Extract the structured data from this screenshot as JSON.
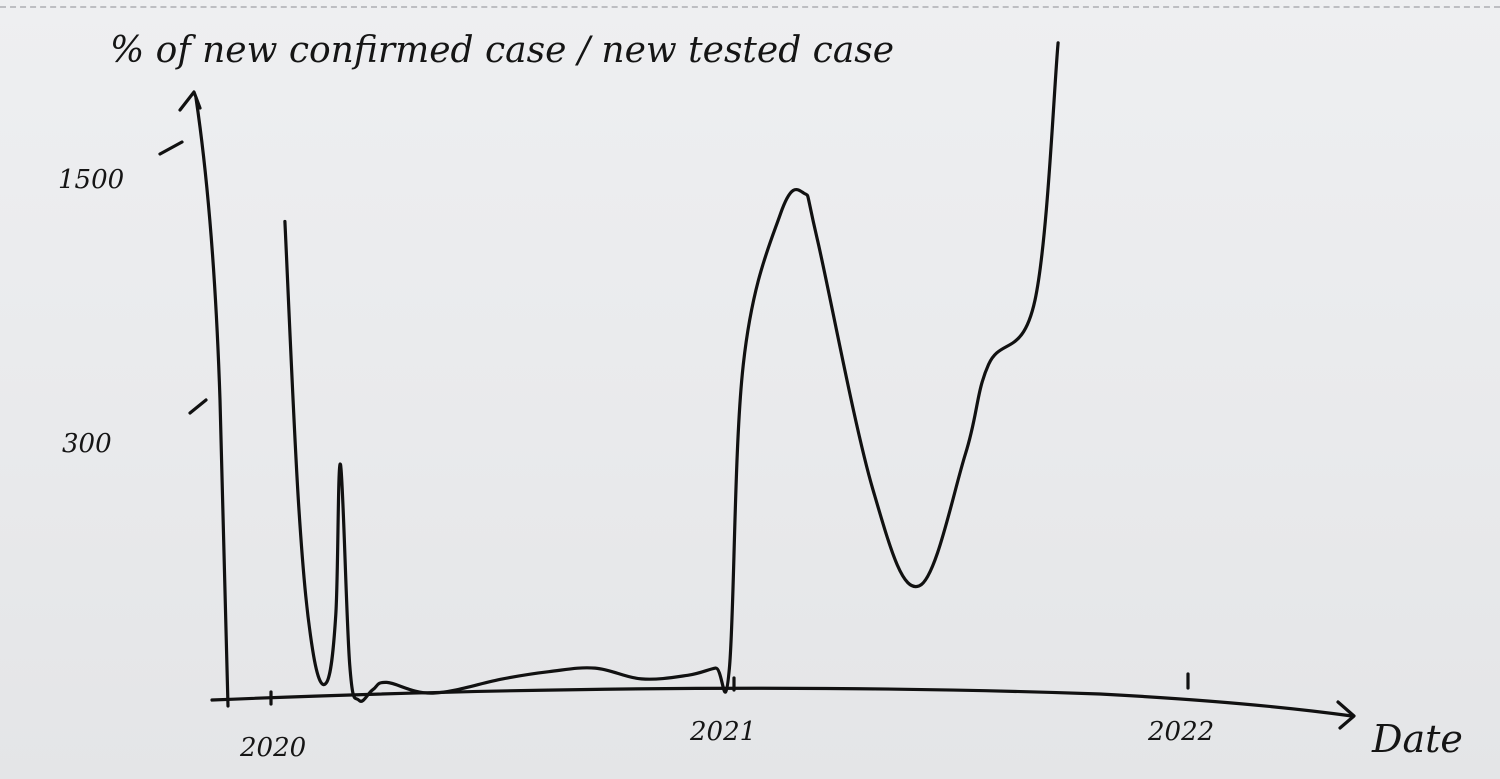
{
  "chart_data": {
    "type": "line",
    "title": "%  of  new  confirmed  case / new  tested  case",
    "xlabel": "Date",
    "ylabel": "",
    "x_ticks": [
      "2020",
      "2021",
      "2022"
    ],
    "y_ticks": [
      "1500",
      "300"
    ],
    "ylim": [
      0,
      1700
    ],
    "xlim": [
      2019.92,
      2022.33
    ],
    "grid": false,
    "series": [
      {
        "x": [
          2020.03,
          2020.06,
          2020.09,
          2020.12,
          2020.14,
          2020.15,
          2020.17,
          2020.19,
          2020.22,
          2020.25,
          2020.35,
          2020.5,
          2020.6,
          2020.7,
          2020.8,
          2020.9,
          2020.96,
          2020.99,
          2021.02,
          2021.1,
          2021.15,
          2021.18,
          2021.3,
          2021.4,
          2021.5,
          2021.55,
          2021.65,
          2021.7
        ],
        "y": [
          1300,
          500,
          100,
          10,
          200,
          620,
          60,
          -40,
          -10,
          10,
          -20,
          20,
          40,
          50,
          20,
          30,
          50,
          50,
          900,
          1320,
          1380,
          1250,
          550,
          280,
          650,
          900,
          1080,
          1800
        ]
      }
    ]
  },
  "ink_color": "#111111"
}
